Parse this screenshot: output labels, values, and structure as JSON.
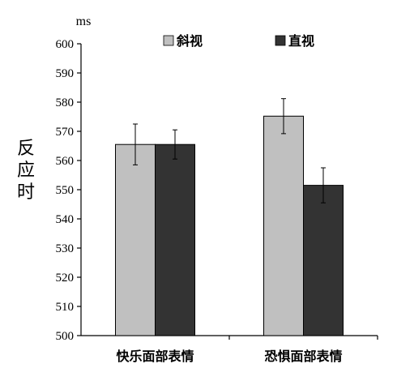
{
  "chart_data": {
    "type": "bar",
    "unit": "ms",
    "ylabel": "反应时",
    "ylim": [
      500,
      600
    ],
    "yticks": [
      500,
      510,
      520,
      530,
      540,
      550,
      560,
      570,
      580,
      590,
      600
    ],
    "categories": [
      "快乐面部表情",
      "恐惧面部表情"
    ],
    "series": [
      {
        "name": "斜视",
        "color": "#c0c0c0",
        "values": [
          565.5,
          575.2
        ],
        "errors": [
          7,
          6
        ]
      },
      {
        "name": "直视",
        "color": "#333333",
        "values": [
          565.5,
          551.5
        ],
        "errors": [
          5,
          6
        ]
      }
    ],
    "legend": "top",
    "grid": false
  }
}
